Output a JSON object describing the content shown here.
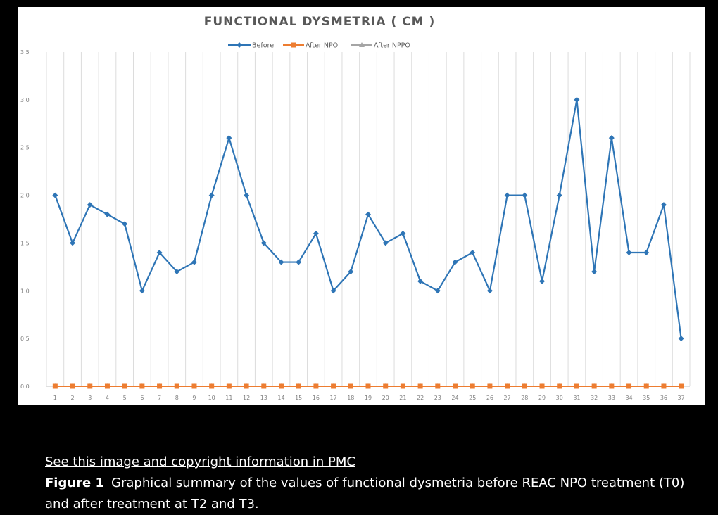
{
  "chart_data": {
    "type": "line",
    "title": "FUNCTIONAL DYSMETRIA ( CM )",
    "xlabel": "",
    "ylabel": "",
    "categories": [
      "1",
      "2",
      "3",
      "4",
      "5",
      "6",
      "7",
      "8",
      "9",
      "10",
      "11",
      "12",
      "13",
      "14",
      "15",
      "16",
      "17",
      "18",
      "19",
      "20",
      "21",
      "22",
      "23",
      "24",
      "25",
      "26",
      "27",
      "28",
      "29",
      "30",
      "31",
      "32",
      "33",
      "34",
      "35",
      "36",
      "37"
    ],
    "ylim": [
      0,
      3.5
    ],
    "yticks": [
      "0.0",
      "0.5",
      "1.0",
      "1.5",
      "2.0",
      "2.5",
      "3.0",
      "3.5"
    ],
    "grid": "vertical",
    "legend_position": "top",
    "series": [
      {
        "name": "Before",
        "color": "#2e75b6",
        "marker": "diamond",
        "values": [
          2.0,
          1.5,
          1.9,
          1.8,
          1.7,
          1.0,
          1.4,
          1.2,
          1.3,
          2.0,
          2.6,
          2.0,
          1.5,
          1.3,
          1.3,
          1.6,
          1.0,
          1.2,
          1.8,
          1.5,
          1.6,
          1.1,
          1.0,
          1.3,
          1.4,
          1.0,
          2.0,
          2.0,
          1.1,
          2.0,
          3.0,
          1.2,
          2.6,
          1.4,
          1.4,
          1.9,
          0.5
        ]
      },
      {
        "name": "After NPO",
        "color": "#ed7d31",
        "marker": "square",
        "values": [
          0,
          0,
          0,
          0,
          0,
          0,
          0,
          0,
          0,
          0,
          0,
          0,
          0,
          0,
          0,
          0,
          0,
          0,
          0,
          0,
          0,
          0,
          0,
          0,
          0,
          0,
          0,
          0,
          0,
          0,
          0,
          0,
          0,
          0,
          0,
          0,
          0
        ]
      },
      {
        "name": "After NPPO",
        "color": "#a5a5a5",
        "marker": "triangle",
        "values": [
          0,
          0,
          0,
          0,
          0,
          0,
          0,
          0,
          0,
          0,
          0,
          0,
          0,
          0,
          0,
          0,
          0,
          0,
          0,
          0,
          0,
          0,
          0,
          0,
          0,
          0,
          0,
          0,
          0,
          0,
          0,
          0,
          0,
          0,
          0,
          0,
          0
        ]
      }
    ]
  },
  "caption": {
    "link_text": "See this image and copyright information in PMC",
    "figure_label": "Figure 1",
    "text": "Graphical summary of the values of functional dysmetria before REAC NPO treatment (T0) and after treatment at T2 and T3."
  }
}
